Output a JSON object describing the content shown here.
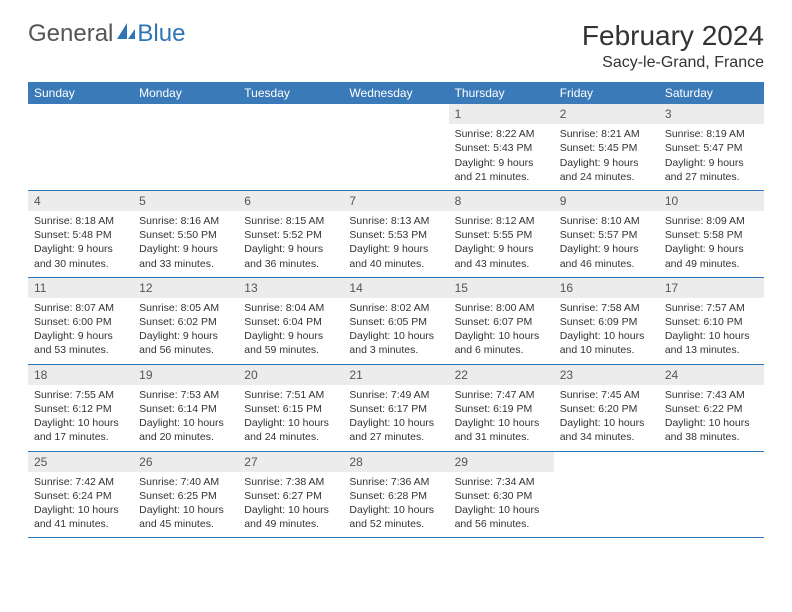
{
  "brand": {
    "part1": "General",
    "part2": "Blue"
  },
  "title": "February 2024",
  "location": "Sacy-le-Grand, France",
  "colors": {
    "header_bg": "#3a7ab8",
    "daynum_bg": "#ececec",
    "week_border": "#2f74b5",
    "text": "#333333"
  },
  "weekdays": [
    "Sunday",
    "Monday",
    "Tuesday",
    "Wednesday",
    "Thursday",
    "Friday",
    "Saturday"
  ],
  "weeks": [
    [
      {
        "empty": true
      },
      {
        "empty": true
      },
      {
        "empty": true
      },
      {
        "empty": true
      },
      {
        "n": "1",
        "sunrise": "Sunrise: 8:22 AM",
        "sunset": "Sunset: 5:43 PM",
        "daylight": "Daylight: 9 hours and 21 minutes."
      },
      {
        "n": "2",
        "sunrise": "Sunrise: 8:21 AM",
        "sunset": "Sunset: 5:45 PM",
        "daylight": "Daylight: 9 hours and 24 minutes."
      },
      {
        "n": "3",
        "sunrise": "Sunrise: 8:19 AM",
        "sunset": "Sunset: 5:47 PM",
        "daylight": "Daylight: 9 hours and 27 minutes."
      }
    ],
    [
      {
        "n": "4",
        "sunrise": "Sunrise: 8:18 AM",
        "sunset": "Sunset: 5:48 PM",
        "daylight": "Daylight: 9 hours and 30 minutes."
      },
      {
        "n": "5",
        "sunrise": "Sunrise: 8:16 AM",
        "sunset": "Sunset: 5:50 PM",
        "daylight": "Daylight: 9 hours and 33 minutes."
      },
      {
        "n": "6",
        "sunrise": "Sunrise: 8:15 AM",
        "sunset": "Sunset: 5:52 PM",
        "daylight": "Daylight: 9 hours and 36 minutes."
      },
      {
        "n": "7",
        "sunrise": "Sunrise: 8:13 AM",
        "sunset": "Sunset: 5:53 PM",
        "daylight": "Daylight: 9 hours and 40 minutes."
      },
      {
        "n": "8",
        "sunrise": "Sunrise: 8:12 AM",
        "sunset": "Sunset: 5:55 PM",
        "daylight": "Daylight: 9 hours and 43 minutes."
      },
      {
        "n": "9",
        "sunrise": "Sunrise: 8:10 AM",
        "sunset": "Sunset: 5:57 PM",
        "daylight": "Daylight: 9 hours and 46 minutes."
      },
      {
        "n": "10",
        "sunrise": "Sunrise: 8:09 AM",
        "sunset": "Sunset: 5:58 PM",
        "daylight": "Daylight: 9 hours and 49 minutes."
      }
    ],
    [
      {
        "n": "11",
        "sunrise": "Sunrise: 8:07 AM",
        "sunset": "Sunset: 6:00 PM",
        "daylight": "Daylight: 9 hours and 53 minutes."
      },
      {
        "n": "12",
        "sunrise": "Sunrise: 8:05 AM",
        "sunset": "Sunset: 6:02 PM",
        "daylight": "Daylight: 9 hours and 56 minutes."
      },
      {
        "n": "13",
        "sunrise": "Sunrise: 8:04 AM",
        "sunset": "Sunset: 6:04 PM",
        "daylight": "Daylight: 9 hours and 59 minutes."
      },
      {
        "n": "14",
        "sunrise": "Sunrise: 8:02 AM",
        "sunset": "Sunset: 6:05 PM",
        "daylight": "Daylight: 10 hours and 3 minutes."
      },
      {
        "n": "15",
        "sunrise": "Sunrise: 8:00 AM",
        "sunset": "Sunset: 6:07 PM",
        "daylight": "Daylight: 10 hours and 6 minutes."
      },
      {
        "n": "16",
        "sunrise": "Sunrise: 7:58 AM",
        "sunset": "Sunset: 6:09 PM",
        "daylight": "Daylight: 10 hours and 10 minutes."
      },
      {
        "n": "17",
        "sunrise": "Sunrise: 7:57 AM",
        "sunset": "Sunset: 6:10 PM",
        "daylight": "Daylight: 10 hours and 13 minutes."
      }
    ],
    [
      {
        "n": "18",
        "sunrise": "Sunrise: 7:55 AM",
        "sunset": "Sunset: 6:12 PM",
        "daylight": "Daylight: 10 hours and 17 minutes."
      },
      {
        "n": "19",
        "sunrise": "Sunrise: 7:53 AM",
        "sunset": "Sunset: 6:14 PM",
        "daylight": "Daylight: 10 hours and 20 minutes."
      },
      {
        "n": "20",
        "sunrise": "Sunrise: 7:51 AM",
        "sunset": "Sunset: 6:15 PM",
        "daylight": "Daylight: 10 hours and 24 minutes."
      },
      {
        "n": "21",
        "sunrise": "Sunrise: 7:49 AM",
        "sunset": "Sunset: 6:17 PM",
        "daylight": "Daylight: 10 hours and 27 minutes."
      },
      {
        "n": "22",
        "sunrise": "Sunrise: 7:47 AM",
        "sunset": "Sunset: 6:19 PM",
        "daylight": "Daylight: 10 hours and 31 minutes."
      },
      {
        "n": "23",
        "sunrise": "Sunrise: 7:45 AM",
        "sunset": "Sunset: 6:20 PM",
        "daylight": "Daylight: 10 hours and 34 minutes."
      },
      {
        "n": "24",
        "sunrise": "Sunrise: 7:43 AM",
        "sunset": "Sunset: 6:22 PM",
        "daylight": "Daylight: 10 hours and 38 minutes."
      }
    ],
    [
      {
        "n": "25",
        "sunrise": "Sunrise: 7:42 AM",
        "sunset": "Sunset: 6:24 PM",
        "daylight": "Daylight: 10 hours and 41 minutes."
      },
      {
        "n": "26",
        "sunrise": "Sunrise: 7:40 AM",
        "sunset": "Sunset: 6:25 PM",
        "daylight": "Daylight: 10 hours and 45 minutes."
      },
      {
        "n": "27",
        "sunrise": "Sunrise: 7:38 AM",
        "sunset": "Sunset: 6:27 PM",
        "daylight": "Daylight: 10 hours and 49 minutes."
      },
      {
        "n": "28",
        "sunrise": "Sunrise: 7:36 AM",
        "sunset": "Sunset: 6:28 PM",
        "daylight": "Daylight: 10 hours and 52 minutes."
      },
      {
        "n": "29",
        "sunrise": "Sunrise: 7:34 AM",
        "sunset": "Sunset: 6:30 PM",
        "daylight": "Daylight: 10 hours and 56 minutes."
      },
      {
        "empty": true
      },
      {
        "empty": true
      }
    ]
  ]
}
